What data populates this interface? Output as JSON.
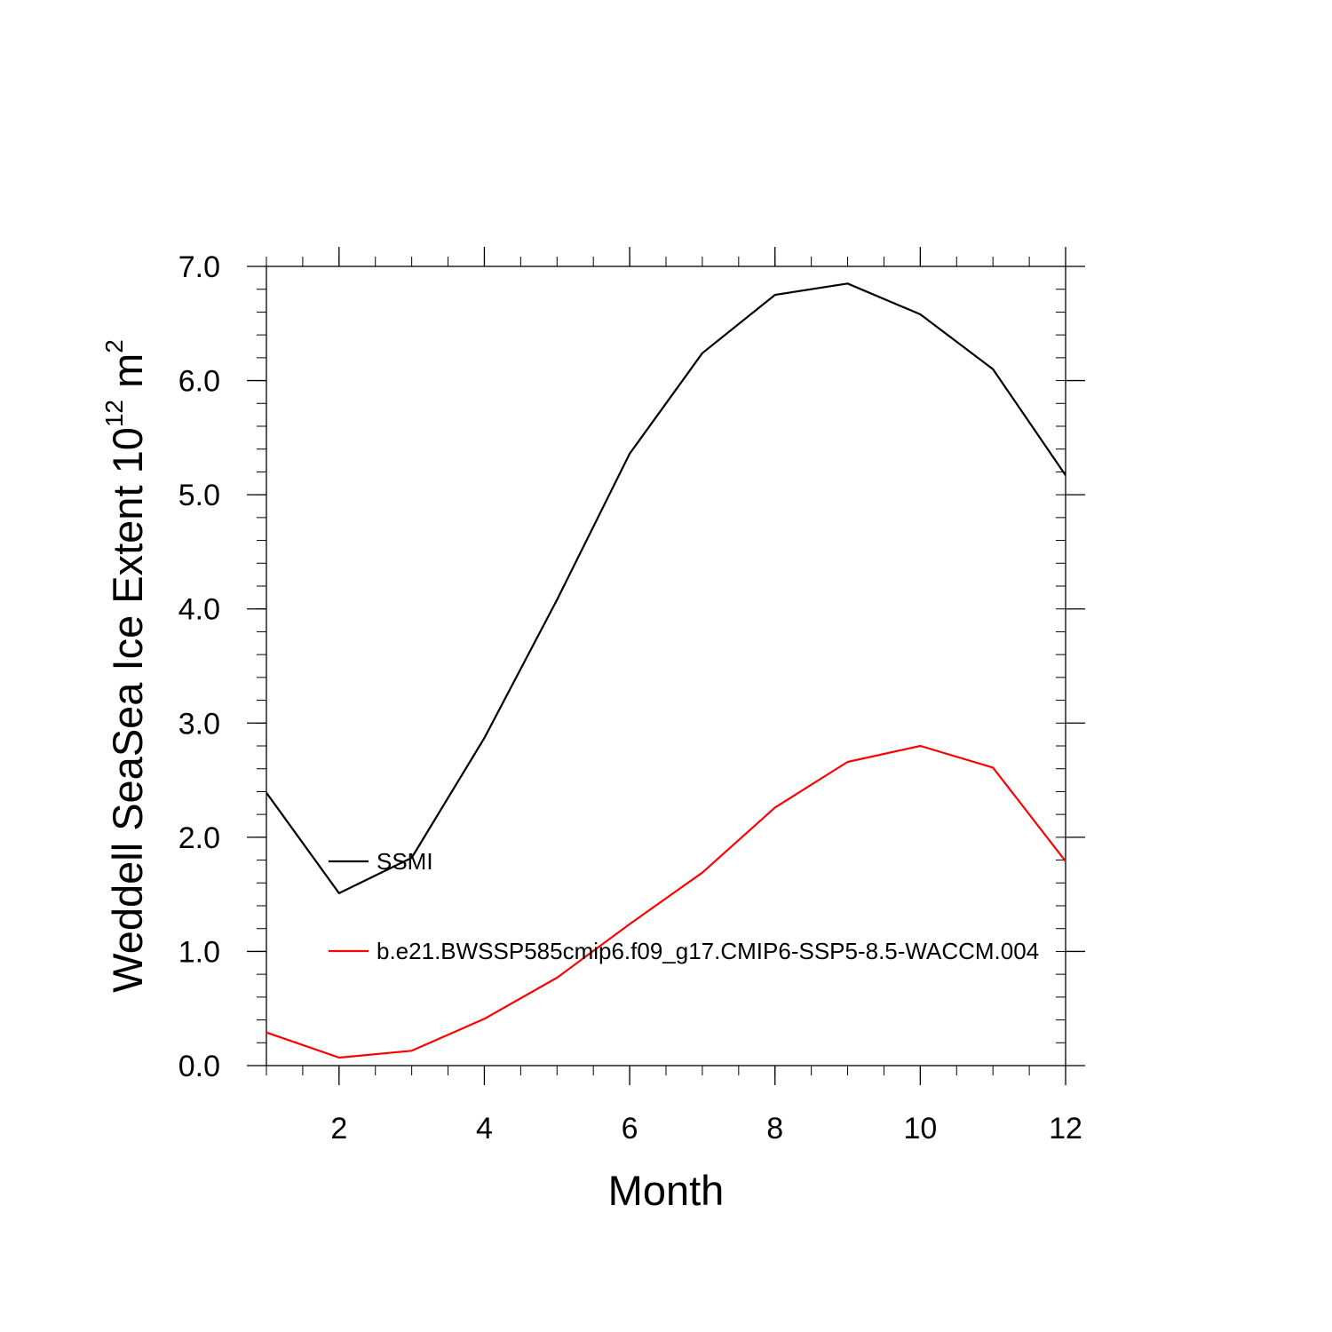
{
  "chart_data": {
    "type": "line",
    "title": "",
    "xlabel": "Month",
    "ylabel": {
      "prefix": "Weddell SeaSea Ice Extent 10",
      "exponent1": "12",
      "middle": " m",
      "exponent2": "2"
    },
    "xlim": [
      1,
      12
    ],
    "ylim": [
      0.0,
      7.0
    ],
    "xticks": [
      2,
      4,
      6,
      8,
      10,
      12
    ],
    "yticks": [
      0.0,
      1.0,
      2.0,
      3.0,
      4.0,
      5.0,
      6.0,
      7.0
    ],
    "ytick_labels": [
      "0.0",
      "1.0",
      "2.0",
      "3.0",
      "4.0",
      "5.0",
      "6.0",
      "7.0"
    ],
    "grid": false,
    "legend_position": "left, inside plot",
    "x": [
      1,
      2,
      3,
      4,
      5,
      6,
      7,
      8,
      9,
      10,
      11,
      12
    ],
    "series": [
      {
        "name": "SSMI",
        "color": "#000000",
        "values": [
          2.39,
          1.51,
          1.82,
          2.87,
          4.08,
          5.36,
          6.24,
          6.75,
          6.85,
          6.58,
          6.1,
          5.17
        ]
      },
      {
        "name": "b.e21.BWSSP585cmip6.f09_g17.CMIP6-SSP5-8.5-WACCM.004",
        "color": "#ff0000",
        "values": [
          0.29,
          0.07,
          0.13,
          0.41,
          0.77,
          1.24,
          1.69,
          2.26,
          2.66,
          2.8,
          2.61,
          1.79
        ]
      }
    ]
  }
}
